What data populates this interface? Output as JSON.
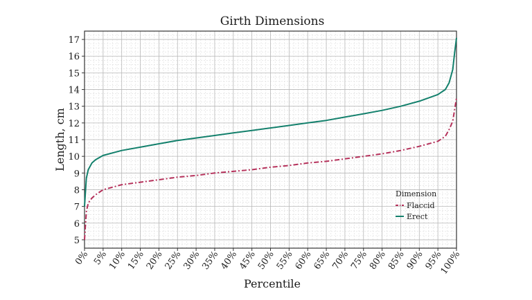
{
  "chart_data": {
    "type": "line",
    "title": "Girth Dimensions",
    "xlabel": "Percentile",
    "ylabel": "Length, cm",
    "xlim": [
      0,
      100
    ],
    "ylim": [
      4.5,
      17.5
    ],
    "x_ticks": [
      "0%",
      "5%",
      "10%",
      "15%",
      "20%",
      "25%",
      "30%",
      "35%",
      "40%",
      "45%",
      "50%",
      "55%",
      "60%",
      "65%",
      "70%",
      "75%",
      "80%",
      "85%",
      "90%",
      "95%",
      "100%"
    ],
    "y_ticks": [
      5,
      6,
      7,
      8,
      9,
      10,
      11,
      12,
      13,
      14,
      15,
      16,
      17
    ],
    "grid": true,
    "legend": {
      "title": "Dimension",
      "position": "right"
    },
    "x": [
      0,
      0.5,
      1,
      2,
      3,
      5,
      10,
      15,
      20,
      25,
      30,
      35,
      40,
      45,
      50,
      55,
      60,
      65,
      70,
      75,
      80,
      85,
      90,
      95,
      97,
      98,
      99,
      99.5,
      100
    ],
    "series": [
      {
        "name": "Flaccid",
        "color": "#b5305a",
        "style": "dashdot",
        "values": [
          5.0,
          6.7,
          7.2,
          7.5,
          7.7,
          8.0,
          8.3,
          8.45,
          8.6,
          8.75,
          8.85,
          9.0,
          9.1,
          9.2,
          9.35,
          9.45,
          9.6,
          9.7,
          9.85,
          10.0,
          10.15,
          10.35,
          10.6,
          10.9,
          11.2,
          11.6,
          12.1,
          12.8,
          13.5
        ]
      },
      {
        "name": "Erect",
        "color": "#13806c",
        "style": "solid",
        "values": [
          7.0,
          8.7,
          9.2,
          9.6,
          9.8,
          10.05,
          10.35,
          10.55,
          10.75,
          10.95,
          11.1,
          11.25,
          11.4,
          11.55,
          11.7,
          11.85,
          12.0,
          12.15,
          12.35,
          12.55,
          12.75,
          13.0,
          13.3,
          13.7,
          14.0,
          14.4,
          15.2,
          16.2,
          17.1
        ]
      }
    ]
  }
}
